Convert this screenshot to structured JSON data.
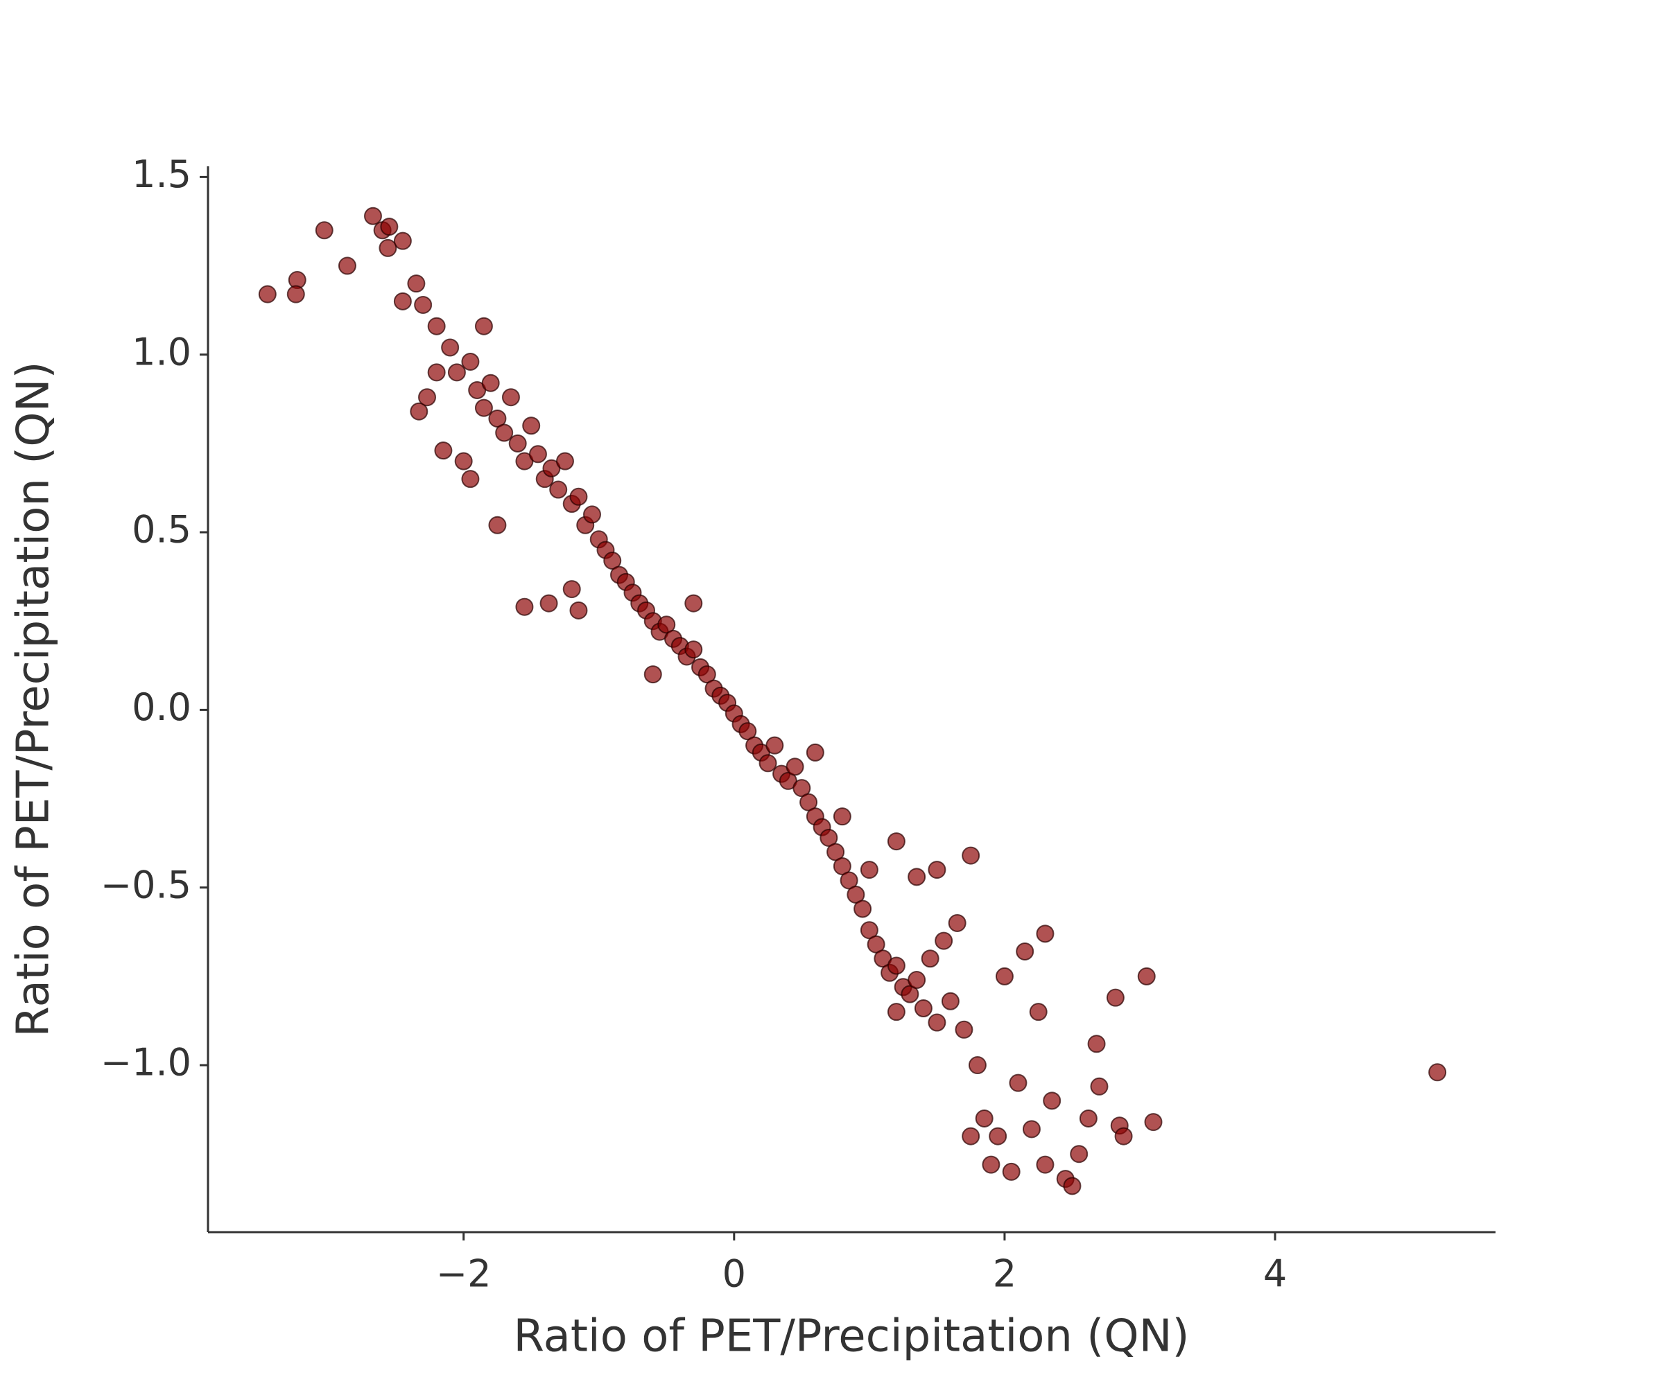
{
  "chart_data": {
    "type": "scatter",
    "xlabel": "Ratio of PET/Precipitation (QN)",
    "ylabel": "Ratio of PET/Precipitation (QN)",
    "color": "#8b0000",
    "xlim": [
      -3.89,
      5.63
    ],
    "ylim": [
      -1.47,
      1.53
    ],
    "xticks": [
      {
        "value": -2,
        "label": "−2"
      },
      0,
      2,
      4
    ],
    "yticks": [
      {
        "value": -1.0,
        "label": "−1.0"
      },
      {
        "value": -0.5,
        "label": "−0.5"
      },
      {
        "value": 0.0,
        "label": "0.0"
      },
      0.5,
      {
        "value": 1.0,
        "label": "1.0"
      },
      1.5
    ],
    "grid": false,
    "x": [
      -3.45,
      -3.23,
      -3.24,
      -3.03,
      -2.86,
      -2.67,
      -2.6,
      -2.55,
      -2.56,
      -2.45,
      -2.35,
      -2.3,
      -2.45,
      -2.33,
      -2.27,
      -2.2,
      -2.15,
      -2.0,
      -1.95,
      -1.85,
      -1.55,
      -1.37,
      -1.75,
      -1.15,
      -1.2,
      -2.2,
      -2.1,
      -2.05,
      -1.95,
      -1.9,
      -1.85,
      -1.8,
      -1.75,
      -1.7,
      -1.65,
      -1.6,
      -1.55,
      -1.5,
      -1.45,
      -1.4,
      -1.35,
      -1.3,
      -1.25,
      -1.2,
      -1.15,
      -1.1,
      -1.05,
      -1.0,
      -0.95,
      -0.9,
      -0.85,
      -0.8,
      -0.75,
      -0.7,
      -0.65,
      -0.6,
      -0.55,
      -0.5,
      -0.45,
      -0.4,
      -0.35,
      -0.3,
      -0.25,
      -0.2,
      -0.15,
      -0.1,
      -0.05,
      0,
      0.05,
      0.1,
      0.15,
      0.2,
      0.25,
      0.3,
      0.35,
      0.4,
      0.45,
      0.5,
      0.55,
      0.6,
      0.65,
      0.7,
      0.75,
      0.8,
      0.85,
      0.9,
      0.95,
      1.0,
      1.05,
      1.1,
      1.15,
      1.2,
      1.25,
      1.3,
      1.35,
      1.4,
      1.45,
      1.5,
      1.55,
      1.6,
      1.65,
      1.7,
      1.75,
      1.2,
      1.5,
      1.35,
      1.8,
      1.85,
      1.9,
      1.95,
      2.0,
      2.05,
      2.1,
      2.15,
      2.2,
      2.25,
      2.3,
      2.3,
      2.35,
      2.45,
      2.5,
      2.55,
      2.62,
      2.68,
      2.7,
      2.82,
      2.85,
      2.88,
      3.05,
      3.1,
      5.2,
      -0.6,
      -0.3,
      0.6,
      0.8,
      1.0,
      1.2,
      1.75
    ],
    "values": [
      1.17,
      1.21,
      1.17,
      1.35,
      1.25,
      1.39,
      1.35,
      1.36,
      1.3,
      1.32,
      1.2,
      1.14,
      1.15,
      0.84,
      0.88,
      0.95,
      0.73,
      0.7,
      0.65,
      1.08,
      0.29,
      0.3,
      0.52,
      0.28,
      0.34,
      1.08,
      1.02,
      0.95,
      0.98,
      0.9,
      0.85,
      0.92,
      0.82,
      0.78,
      0.88,
      0.75,
      0.7,
      0.8,
      0.72,
      0.65,
      0.68,
      0.62,
      0.7,
      0.58,
      0.6,
      0.52,
      0.55,
      0.48,
      0.45,
      0.42,
      0.38,
      0.36,
      0.33,
      0.3,
      0.28,
      0.25,
      0.22,
      0.24,
      0.2,
      0.18,
      0.15,
      0.17,
      0.12,
      0.1,
      0.06,
      0.04,
      0.02,
      -0.01,
      -0.04,
      -0.06,
      -0.1,
      -0.12,
      -0.15,
      -0.1,
      -0.18,
      -0.2,
      -0.16,
      -0.22,
      -0.26,
      -0.3,
      -0.33,
      -0.36,
      -0.4,
      -0.44,
      -0.48,
      -0.52,
      -0.56,
      -0.62,
      -0.66,
      -0.7,
      -0.74,
      -0.72,
      -0.78,
      -0.8,
      -0.76,
      -0.84,
      -0.7,
      -0.88,
      -0.65,
      -0.82,
      -0.6,
      -0.9,
      -0.41,
      -0.37,
      -0.45,
      -0.47,
      -1.0,
      -1.15,
      -1.28,
      -1.2,
      -0.75,
      -1.3,
      -1.05,
      -0.68,
      -1.18,
      -0.85,
      -0.63,
      -1.28,
      -1.1,
      -1.32,
      -1.34,
      -1.25,
      -1.15,
      -0.94,
      -1.06,
      -0.81,
      -1.17,
      -1.2,
      -0.75,
      -1.16,
      -1.02,
      0.1,
      0.3,
      -0.12,
      -0.3,
      -0.45,
      -0.85,
      -1.2
    ]
  }
}
